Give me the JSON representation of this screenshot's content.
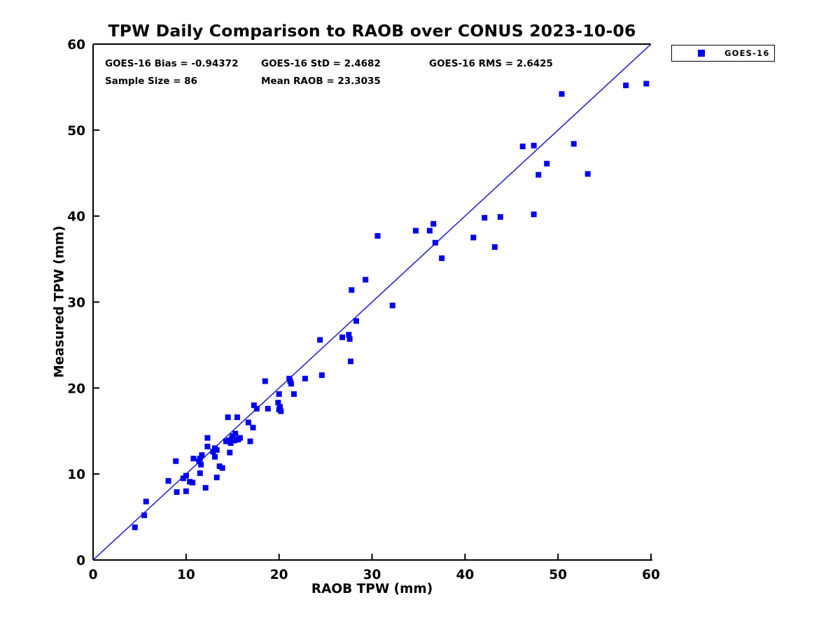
{
  "title": "TPW Daily Comparison to RAOB over CONUS 2023-10-06",
  "stats_overlay": {
    "bias": "GOES-16 Bias = -0.94372",
    "std": "GOES-16 StD = 2.4682",
    "rms": "GOES-16 RMS = 2.6425",
    "sample_size": "Sample Size = 86",
    "mean_raob": "Mean RAOB = 23.3035"
  },
  "legend": {
    "items": [
      {
        "label": "GOES-16",
        "marker": "square",
        "color": "#0000ee"
      }
    ]
  },
  "colors": {
    "marker": "#0000ee",
    "reference_line": "#2828c8",
    "axes": "#000000",
    "background": "#ffffff"
  },
  "chart_data": {
    "type": "scatter",
    "title": "TPW Daily Comparison to RAOB over CONUS 2023-10-06",
    "xlabel": "RAOB TPW (mm)",
    "ylabel": "Measured TPW (mm)",
    "xlim": [
      0,
      60
    ],
    "ylim": [
      0,
      60
    ],
    "xticks": [
      0,
      10,
      20,
      30,
      40,
      50,
      60
    ],
    "yticks": [
      0,
      10,
      20,
      30,
      40,
      50,
      60
    ],
    "grid": false,
    "legend_position": "top-right-outside",
    "annotations": [
      "GOES-16 Bias = -0.94372",
      "GOES-16 StD = 2.4682",
      "GOES-16 RMS = 2.6425",
      "Sample Size = 86",
      "Mean RAOB = 23.3035"
    ],
    "reference_line": {
      "type": "identity",
      "from": [
        0,
        0
      ],
      "to": [
        60,
        60
      ],
      "color": "#2828c8"
    },
    "series": [
      {
        "name": "GOES-16",
        "marker": "square",
        "color": "#0000ee",
        "points": [
          [
            4.5,
            3.8
          ],
          [
            5.5,
            5.2
          ],
          [
            5.7,
            6.8
          ],
          [
            8.1,
            9.2
          ],
          [
            8.9,
            11.5
          ],
          [
            9.0,
            7.9
          ],
          [
            9.7,
            9.5
          ],
          [
            10.0,
            9.8
          ],
          [
            10.0,
            8.0
          ],
          [
            10.4,
            9.1
          ],
          [
            10.7,
            9.0
          ],
          [
            10.8,
            11.8
          ],
          [
            11.7,
            12.2
          ],
          [
            11.4,
            11.5
          ],
          [
            11.6,
            11.1
          ],
          [
            11.5,
            10.1
          ],
          [
            11.5,
            11.8
          ],
          [
            12.1,
            8.4
          ],
          [
            12.3,
            14.2
          ],
          [
            12.3,
            13.2
          ],
          [
            13.1,
            13.0
          ],
          [
            13.3,
            12.8
          ],
          [
            12.9,
            12.6
          ],
          [
            13.1,
            12.0
          ],
          [
            13.6,
            10.9
          ],
          [
            13.9,
            10.7
          ],
          [
            13.3,
            9.6
          ],
          [
            14.5,
            16.6
          ],
          [
            15.5,
            16.6
          ],
          [
            16.7,
            16.0
          ],
          [
            17.2,
            15.4
          ],
          [
            15.3,
            14.7
          ],
          [
            14.9,
            14.1
          ],
          [
            14.6,
            13.9
          ],
          [
            14.3,
            13.8
          ],
          [
            15.2,
            13.9
          ],
          [
            15.6,
            14.0
          ],
          [
            15.8,
            14.2
          ],
          [
            15.0,
            14.4
          ],
          [
            14.8,
            13.6
          ],
          [
            14.7,
            12.5
          ],
          [
            16.9,
            13.8
          ],
          [
            17.3,
            18.0
          ],
          [
            17.6,
            17.6
          ],
          [
            18.5,
            20.8
          ],
          [
            18.8,
            17.6
          ],
          [
            19.9,
            18.3
          ],
          [
            20.0,
            17.5
          ],
          [
            20.2,
            17.3
          ],
          [
            20.1,
            17.8
          ],
          [
            20.0,
            19.3
          ],
          [
            21.6,
            19.3
          ],
          [
            21.1,
            21.1
          ],
          [
            21.3,
            20.5
          ],
          [
            21.2,
            20.8
          ],
          [
            22.8,
            21.1
          ],
          [
            24.4,
            25.6
          ],
          [
            24.6,
            21.5
          ],
          [
            26.8,
            25.9
          ],
          [
            27.5,
            26.2
          ],
          [
            27.6,
            25.7
          ],
          [
            27.7,
            23.1
          ],
          [
            28.3,
            27.8
          ],
          [
            27.8,
            31.4
          ],
          [
            29.3,
            32.6
          ],
          [
            30.6,
            37.7
          ],
          [
            32.2,
            29.6
          ],
          [
            34.7,
            38.3
          ],
          [
            36.2,
            38.3
          ],
          [
            36.6,
            39.1
          ],
          [
            36.8,
            36.9
          ],
          [
            37.5,
            35.1
          ],
          [
            40.9,
            37.5
          ],
          [
            42.1,
            39.8
          ],
          [
            43.8,
            39.9
          ],
          [
            43.2,
            36.4
          ],
          [
            46.2,
            48.1
          ],
          [
            47.4,
            48.2
          ],
          [
            47.4,
            40.2
          ],
          [
            47.9,
            44.8
          ],
          [
            48.8,
            46.1
          ],
          [
            50.4,
            54.2
          ],
          [
            51.7,
            48.4
          ],
          [
            53.2,
            44.9
          ],
          [
            57.3,
            55.2
          ],
          [
            59.5,
            55.4
          ]
        ]
      }
    ]
  }
}
